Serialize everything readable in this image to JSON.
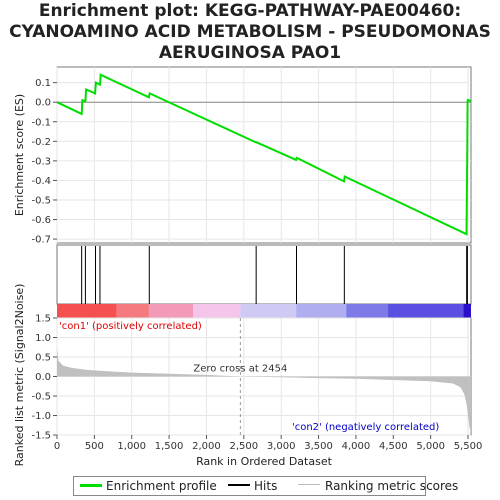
{
  "title_lines": [
    "Enrichment plot: KEGG-PATHWAY-PAE00460:",
    "CYANOAMINO ACID METABOLISM - PSEUDOMONAS",
    "AERUGINOSA PAO1"
  ],
  "chart_data": {
    "type": "line",
    "x_label": "Rank in Ordered Dataset",
    "es_panel": {
      "ylabel": "Enrichment score (ES)",
      "ylim": [
        -0.72,
        0.18
      ],
      "yticks": [
        "0.1",
        "0.0",
        "-0.1",
        "-0.2",
        "-0.3",
        "-0.4",
        "-0.5",
        "-0.6",
        "-0.7"
      ],
      "ytick_values": [
        0.1,
        0.0,
        -0.1,
        -0.2,
        -0.3,
        -0.4,
        -0.5,
        -0.6,
        -0.7
      ],
      "series": [
        {
          "name": "Enrichment profile",
          "color": "#00dd00",
          "x": [
            0,
            330,
            340,
            380,
            390,
            510,
            520,
            575,
            585,
            1230,
            1240,
            2660,
            2670,
            3200,
            3210,
            3840,
            3850,
            5480,
            5485,
            5490,
            5495,
            5500,
            5540
          ],
          "y": [
            0.0,
            -0.06,
            0.01,
            0.005,
            0.065,
            0.045,
            0.1,
            0.09,
            0.14,
            0.025,
            0.045,
            -0.205,
            -0.205,
            -0.295,
            -0.285,
            -0.405,
            -0.38,
            -0.675,
            -0.46,
            -0.23,
            0.01,
            0.012,
            0.005
          ]
        }
      ]
    },
    "hits_panel": {
      "hit_positions": [
        330,
        380,
        515,
        575,
        1235,
        2665,
        3205,
        3845,
        5482,
        5492
      ]
    },
    "rank_panel": {
      "ylabel": "Ranked list metric (Signal2Noise)",
      "ylim": [
        -1.5,
        1.5
      ],
      "yticks": [
        "1.5",
        "1.0",
        "0.5",
        "0.0",
        "-0.5",
        "-1.0",
        "-1.5"
      ],
      "ytick_values": [
        1.5,
        1.0,
        0.5,
        0.0,
        -0.5,
        -1.0,
        -1.5
      ],
      "metric_profile": {
        "x": [
          0,
          20,
          80,
          200,
          400,
          700,
          1000,
          1500,
          2000,
          2454,
          3000,
          3500,
          4000,
          4500,
          5000,
          5300,
          5400,
          5450,
          5480,
          5500,
          5520,
          5540
        ],
        "y": [
          0.72,
          0.4,
          0.28,
          0.22,
          0.17,
          0.13,
          0.1,
          0.07,
          0.04,
          0.0,
          -0.02,
          -0.04,
          -0.06,
          -0.09,
          -0.12,
          -0.18,
          -0.28,
          -0.45,
          -0.7,
          -1.0,
          -1.3,
          -1.45
        ]
      },
      "zero_cross_label": "Zero cross at 2454",
      "zero_cross": 2454,
      "pos_label": "'con1' (positively correlated)",
      "neg_label": "'con2' (negatively correlated)"
    },
    "xlim": [
      0,
      5540
    ],
    "xticks": [
      "0",
      "500",
      "1,000",
      "1,500",
      "2,000",
      "2,500",
      "3,000",
      "3,500",
      "4,000",
      "4,500",
      "5,000",
      "5,500"
    ],
    "xtick_values": [
      0,
      500,
      1000,
      1500,
      2000,
      2500,
      3000,
      3500,
      4000,
      4500,
      5000,
      5500
    ],
    "colorbar_segments": [
      {
        "to": 800,
        "color": "#f55050"
      },
      {
        "to": 1230,
        "color": "#f47a80"
      },
      {
        "to": 1820,
        "color": "#f29ab8"
      },
      {
        "to": 2454,
        "color": "#f6c5ec"
      },
      {
        "to": 3200,
        "color": "#cfcaf3"
      },
      {
        "to": 3870,
        "color": "#b0aef0"
      },
      {
        "to": 4430,
        "color": "#7d7ae8"
      },
      {
        "to": 5440,
        "color": "#5a4fe0"
      },
      {
        "to": 5540,
        "color": "#2a10c8"
      }
    ]
  },
  "legend": {
    "items": [
      {
        "label": "Enrichment profile",
        "color": "#00dd00"
      },
      {
        "label": "Hits",
        "color": "#000000"
      },
      {
        "label": "Ranking metric scores",
        "color": "#bbbbbb"
      }
    ]
  }
}
